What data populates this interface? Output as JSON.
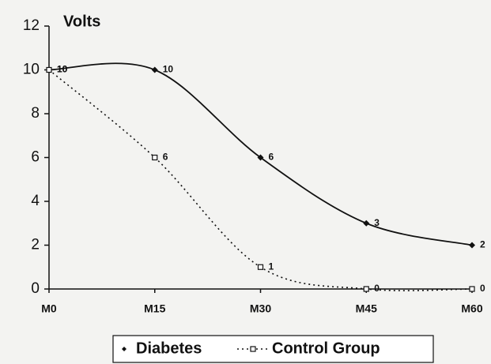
{
  "chart_data": {
    "type": "line",
    "y_label": "Volts",
    "categories": [
      "M0",
      "M15",
      "M30",
      "M45",
      "M60"
    ],
    "series": [
      {
        "name": "Diabetes",
        "color": "#111111",
        "values": [
          10,
          10,
          6,
          3,
          2
        ]
      },
      {
        "name": "Control Group",
        "color": "#111111",
        "values": [
          10,
          6,
          1,
          0,
          0
        ]
      }
    ],
    "ylim": [
      0,
      12
    ],
    "yticks": [
      0,
      2,
      4,
      6,
      8,
      10,
      12
    ],
    "legend": "bottom"
  }
}
